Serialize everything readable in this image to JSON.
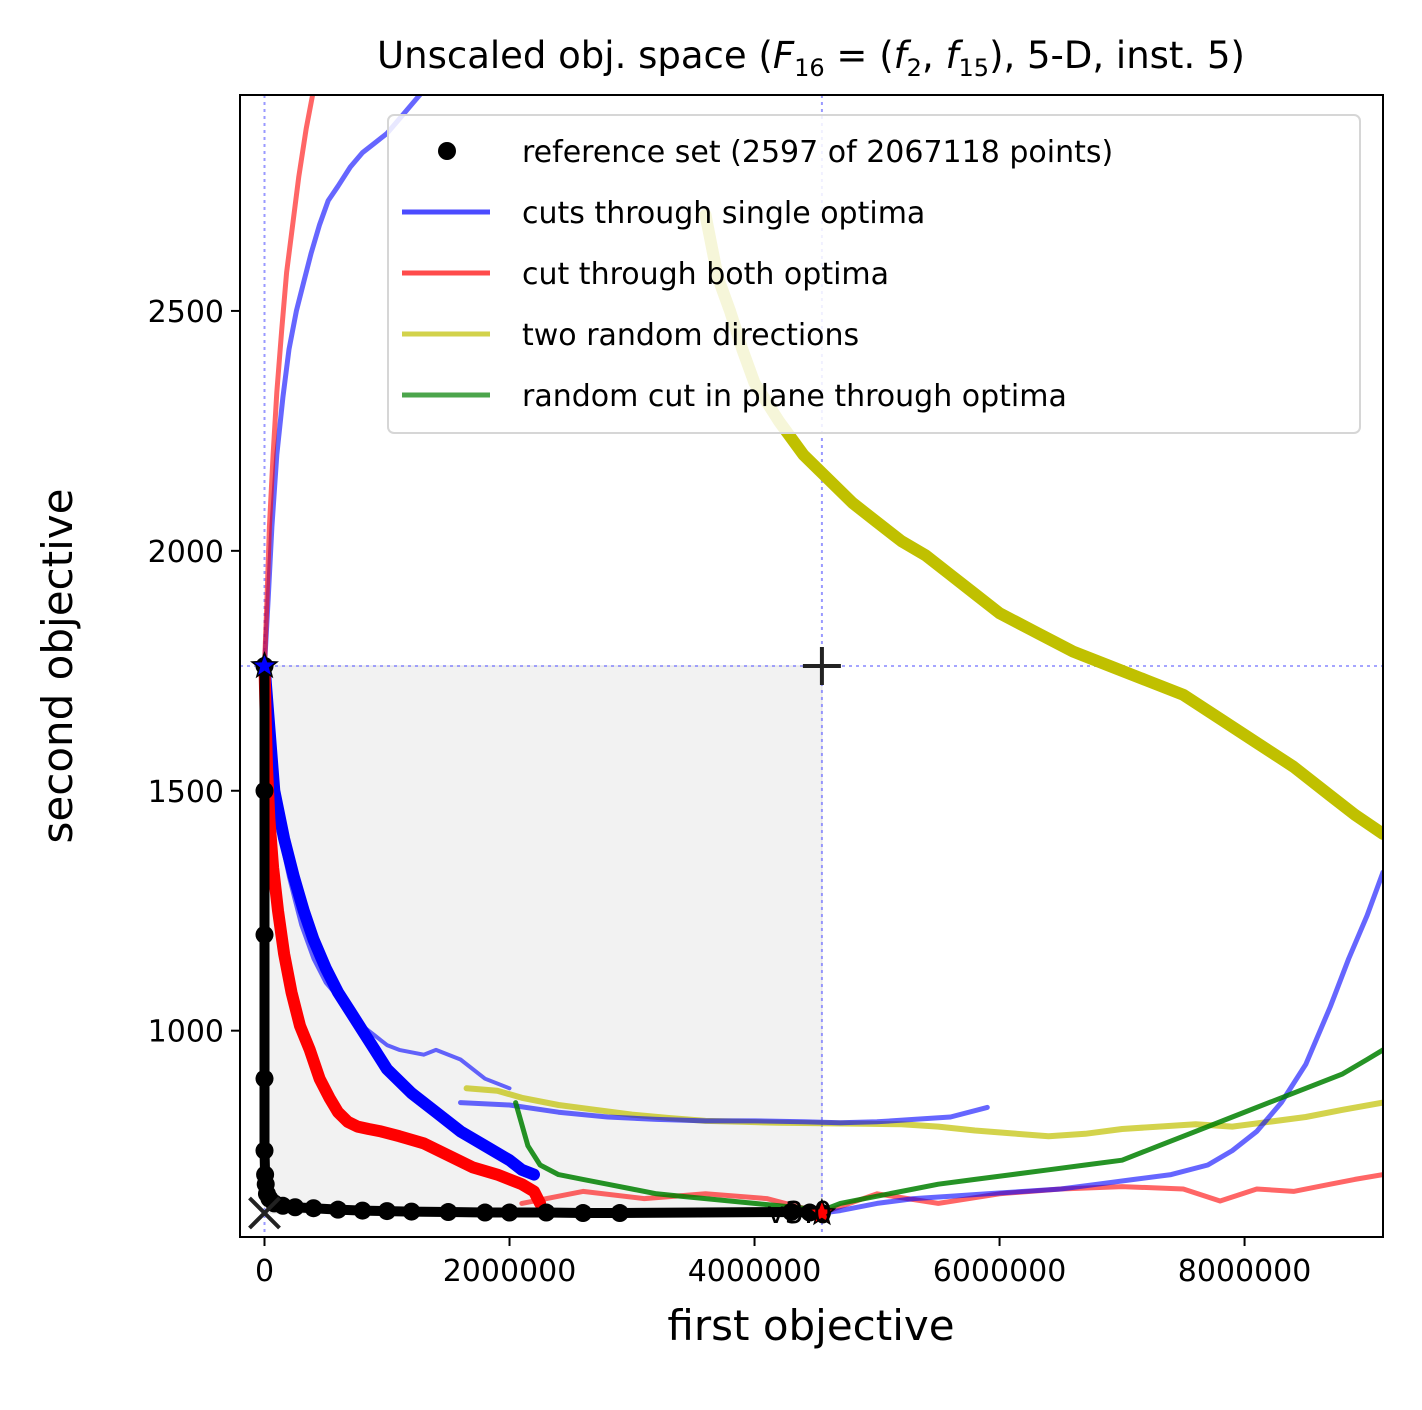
{
  "chart_data": {
    "type": "line",
    "title": "Unscaled obj. space (F16 = (f2, f15), 5-D, inst. 5)",
    "title_parts": {
      "prefix": "Unscaled obj. space (",
      "F": "F",
      "F_sub": "16",
      "eq": " = (",
      "f_a": "f",
      "f_a_sub": "2",
      "comma": ", ",
      "f_b": "f",
      "f_b_sub": "15",
      "suffix": "), 5-D, inst. 5)"
    },
    "xlabel": "first objective",
    "ylabel": "second objective",
    "xlim": [
      -200000,
      9130000
    ],
    "ylim": [
      570,
      2950
    ],
    "xticks": [
      0,
      2000000,
      4000000,
      6000000,
      8000000
    ],
    "xtick_labels": [
      "0",
      "2000000",
      "4000000",
      "6000000",
      "8000000"
    ],
    "yticks": [
      1000,
      1500,
      2000,
      2500
    ],
    "ytick_labels": [
      "1000",
      "1500",
      "2000",
      "2500"
    ],
    "grid": false,
    "legend_position": "top-right",
    "annotation": "v3.0",
    "colors": {
      "reference": "#000000",
      "single_optima": "#0000ff",
      "both_optima": "#ff0000",
      "random_directions": "#c0c000",
      "plane_cut": "#008000",
      "dominated_region": "#f2f2f2",
      "dotted": "#8080ff"
    },
    "legend": [
      {
        "label": "reference set (2597 of 2067118 points)",
        "kind": "dot",
        "color": "#000000"
      },
      {
        "label": "cuts through single optima",
        "kind": "line",
        "color": "#0000ff"
      },
      {
        "label": "cut through both optima",
        "kind": "line",
        "color": "#ff0000"
      },
      {
        "label": "two random directions",
        "kind": "line",
        "color": "#c0c000"
      },
      {
        "label": "random cut in plane through optima",
        "kind": "line",
        "color": "#008000"
      }
    ],
    "optimum_1": [
      0,
      1760
    ],
    "optimum_2": [
      4550000,
      620
    ],
    "ideal_point": [
      0,
      620
    ],
    "nadir_point": [
      4550000,
      1760
    ],
    "series": [
      {
        "role": "reference_set",
        "x": [
          0,
          0,
          0,
          0,
          0,
          5000,
          10000,
          20000,
          40000,
          80000,
          150000,
          250000,
          400000,
          600000,
          800000,
          1000000,
          1200000,
          1500000,
          1800000,
          2000000,
          2300000,
          2600000,
          2900000,
          4300000,
          4450000,
          4550000
        ],
        "y": [
          1760,
          1500,
          1200,
          900,
          750,
          700,
          680,
          660,
          650,
          640,
          635,
          632,
          630,
          627,
          625,
          624,
          623,
          622,
          621,
          621,
          621,
          620,
          620,
          622,
          621,
          620
        ]
      },
      {
        "role": "single_optima_left_up",
        "x": [
          0,
          30000,
          60000,
          100000,
          150000,
          200000,
          260000,
          320000,
          380000,
          450000,
          520000,
          600000,
          700000,
          800000,
          900000,
          1000000,
          1100000,
          1200000,
          1300000
        ],
        "y": [
          1760,
          1900,
          2050,
          2200,
          2320,
          2420,
          2500,
          2560,
          2620,
          2680,
          2730,
          2760,
          2800,
          2830,
          2850,
          2870,
          2900,
          2930,
          2960
        ]
      },
      {
        "role": "single_optima_left_down",
        "x": [
          0,
          50000,
          100000,
          150000,
          200000,
          250000,
          300000,
          400000,
          500000,
          600000,
          700000,
          800000,
          900000,
          1000000,
          1100000,
          1200000,
          1300000,
          1400000,
          1600000,
          1800000,
          2000000
        ],
        "y": [
          1760,
          1580,
          1470,
          1380,
          1320,
          1270,
          1220,
          1150,
          1100,
          1070,
          1040,
          1010,
          990,
          970,
          960,
          955,
          950,
          960,
          940,
          900,
          880
        ]
      },
      {
        "role": "single_optima_left_down_inner",
        "x": [
          0,
          80000,
          160000,
          240000,
          320000,
          400000,
          500000,
          600000,
          700000,
          800000,
          900000,
          1000000,
          1200000,
          1400000,
          1600000,
          1800000,
          2000000,
          2100000,
          2200000
        ],
        "y": [
          1760,
          1500,
          1400,
          1320,
          1250,
          1190,
          1130,
          1080,
          1040,
          1000,
          960,
          920,
          870,
          830,
          790,
          760,
          730,
          710,
          700
        ]
      },
      {
        "role": "single_optima_right",
        "x": [
          4550000,
          4700000,
          5000000,
          5300000,
          5600000,
          5900000,
          6200000,
          6500000,
          6800000,
          7100000,
          7400000,
          7700000,
          7900000,
          8100000,
          8300000,
          8500000,
          8700000,
          8850000,
          9000000,
          9130000
        ],
        "y": [
          620,
          625,
          640,
          650,
          655,
          660,
          665,
          670,
          680,
          690,
          700,
          720,
          750,
          790,
          850,
          930,
          1050,
          1150,
          1240,
          1330
        ]
      },
      {
        "role": "single_optima_mid",
        "x": [
          1600000,
          2000000,
          2400000,
          2800000,
          3200000,
          3600000,
          4000000,
          4400000,
          4700000,
          5000000,
          5300000,
          5600000,
          5900000
        ],
        "y": [
          850,
          845,
          830,
          820,
          815,
          812,
          812,
          810,
          808,
          810,
          815,
          820,
          840
        ]
      },
      {
        "role": "both_optima",
        "x": [
          0,
          10000,
          20000,
          40000,
          70000,
          110000,
          160000,
          220000,
          290000,
          370000,
          450000,
          530000,
          600000,
          680000,
          760000,
          850000,
          950000,
          1100000,
          1300000,
          1500000,
          1700000,
          1900000,
          2100000,
          2200000,
          2250000
        ],
        "y": [
          1760,
          1650,
          1550,
          1440,
          1340,
          1250,
          1160,
          1080,
          1010,
          960,
          900,
          860,
          830,
          810,
          800,
          795,
          790,
          780,
          765,
          740,
          715,
          700,
          680,
          665,
          640
        ]
      },
      {
        "role": "both_optima_upper",
        "x": [
          0,
          20000,
          40000,
          70000,
          100000,
          140000,
          180000,
          230000,
          280000,
          340000,
          400000
        ],
        "y": [
          1760,
          1900,
          2050,
          2200,
          2330,
          2460,
          2580,
          2680,
          2780,
          2880,
          2960
        ]
      },
      {
        "role": "both_optima_right",
        "x": [
          2100000,
          2600000,
          3100000,
          3600000,
          4100000,
          4550000,
          5000000,
          5500000,
          6000000,
          6500000,
          7000000,
          7500000,
          7800000,
          8100000,
          8400000,
          8700000,
          8900000,
          9130000
        ],
        "y": [
          640,
          665,
          650,
          660,
          650,
          620,
          660,
          640,
          660,
          670,
          675,
          670,
          645,
          670,
          665,
          680,
          690,
          700
        ]
      },
      {
        "role": "random_directions_upper",
        "x": [
          3600000,
          3700000,
          3800000,
          3900000,
          4000000,
          4200000,
          4400000,
          4600000,
          4800000,
          5000000,
          5200000,
          5400000,
          5600000,
          5800000,
          6000000,
          6300000,
          6600000,
          6900000,
          7200000,
          7500000,
          7800000,
          8100000,
          8400000,
          8700000,
          8900000,
          9130000
        ],
        "y": [
          2700,
          2570,
          2500,
          2420,
          2350,
          2270,
          2200,
          2150,
          2100,
          2060,
          2020,
          1990,
          1950,
          1910,
          1870,
          1830,
          1790,
          1760,
          1730,
          1700,
          1650,
          1600,
          1550,
          1490,
          1450,
          1410
        ]
      },
      {
        "role": "random_directions_lower",
        "x": [
          1650000,
          1900000,
          2100000,
          2400000,
          2700000,
          3000000,
          3300000,
          3600000,
          3900000,
          4200000,
          4550000,
          4900000,
          5200000,
          5500000,
          5800000,
          6100000,
          6400000,
          6700000,
          7000000,
          7300000,
          7600000,
          7900000,
          8200000,
          8500000,
          8800000,
          9130000
        ],
        "y": [
          880,
          875,
          860,
          845,
          835,
          825,
          818,
          812,
          810,
          808,
          807,
          806,
          805,
          800,
          792,
          786,
          780,
          785,
          795,
          800,
          805,
          800,
          810,
          820,
          835,
          850
        ]
      },
      {
        "role": "plane_cut",
        "x": [
          2050000,
          2150000,
          2250000,
          2400000,
          2600000,
          2800000,
          3000000,
          3200000,
          3400000,
          3600000,
          3800000,
          4000000,
          4200000,
          4400000,
          4550000,
          4700000,
          4900000,
          5100000,
          5300000,
          5500000,
          5800000,
          6100000,
          6400000,
          6700000,
          7000000,
          7300000,
          7600000,
          7900000,
          8200000,
          8500000,
          8800000,
          9000000,
          9130000
        ],
        "y": [
          850,
          760,
          720,
          700,
          690,
          680,
          670,
          660,
          655,
          650,
          645,
          640,
          635,
          630,
          625,
          640,
          650,
          660,
          670,
          680,
          690,
          700,
          710,
          720,
          730,
          760,
          790,
          820,
          850,
          880,
          910,
          940,
          960
        ]
      }
    ]
  }
}
